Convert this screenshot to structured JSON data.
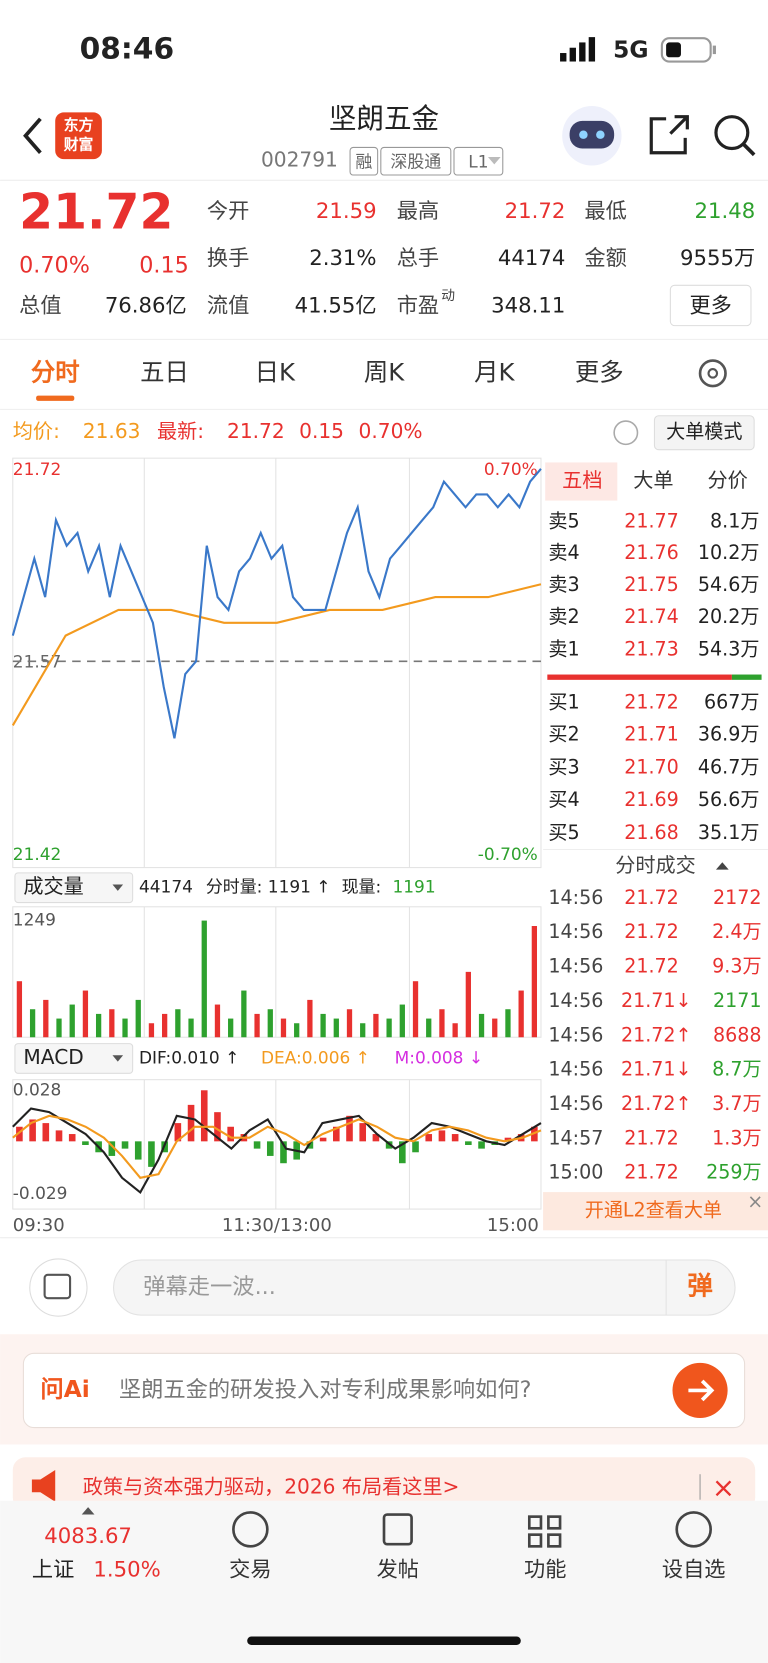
{
  "status": {
    "time": "08:46",
    "network": "5G"
  },
  "header": {
    "logo": [
      "东方",
      "财富"
    ],
    "title": "坚朗五金",
    "code": "002791",
    "tags": [
      "融",
      "深股通",
      "L1"
    ]
  },
  "quote": {
    "price": "21.72",
    "pct": "0.70%",
    "change": "0.15",
    "stats": [
      {
        "label": "今开",
        "value": "21.59",
        "color": "#e8312f"
      },
      {
        "label": "最高",
        "value": "21.72",
        "color": "#e8312f"
      },
      {
        "label": "最低",
        "value": "21.48",
        "color": "#2ea12e"
      },
      {
        "label": "换手",
        "value": "2.31%",
        "color": "#222222"
      },
      {
        "label": "总手",
        "value": "44174",
        "color": "#222222"
      },
      {
        "label": "金额",
        "value": "9555万",
        "color": "#222222"
      },
      {
        "label": "总值",
        "value": "76.86亿",
        "color": "#222222"
      },
      {
        "label": "流值",
        "value": "41.55亿",
        "color": "#222222"
      },
      {
        "label": "市盈",
        "sup": "动",
        "value": "348.11",
        "color": "#222222"
      }
    ],
    "more": "更多"
  },
  "tabs": [
    "分时",
    "五日",
    "日K",
    "周K",
    "月K",
    "更多"
  ],
  "info": {
    "avg_label": "均价:",
    "avg": "21.63",
    "last_label": "最新:",
    "last": "21.72",
    "change": "0.15",
    "pct": "0.70%",
    "mode": "大单模式"
  },
  "price_chart": {
    "type": "line",
    "ylim": [
      21.42,
      21.72
    ],
    "yticks": [
      21.72,
      21.57,
      21.42
    ],
    "y2lim": [
      -0.7,
      0.7
    ],
    "y2ticks": [
      {
        "value": 0.7,
        "label": "0.70%"
      },
      {
        "value": -0.7,
        "label": "-0.70%"
      }
    ],
    "prev_close": 21.57,
    "series": [
      {
        "name": "最新",
        "color": "#3a78c9",
        "values": [
          21.59,
          21.62,
          21.65,
          21.62,
          21.68,
          21.66,
          21.67,
          21.64,
          21.66,
          21.62,
          21.66,
          21.64,
          21.62,
          21.6,
          21.55,
          21.51,
          21.56,
          21.57,
          21.66,
          21.62,
          21.61,
          21.64,
          21.65,
          21.67,
          21.65,
          21.66,
          21.62,
          21.61,
          21.61,
          21.61,
          21.64,
          21.67,
          21.69,
          21.64,
          21.62,
          21.65,
          21.66,
          21.67,
          21.68,
          21.69,
          21.71,
          21.7,
          21.69,
          21.7,
          21.7,
          21.69,
          21.7,
          21.69,
          21.71,
          21.72
        ]
      },
      {
        "name": "均价",
        "color": "#f39a1e",
        "values": [
          21.52,
          21.59,
          21.61,
          21.61,
          21.6,
          21.6,
          21.61,
          21.61,
          21.62,
          21.62,
          21.63
        ]
      }
    ],
    "xticks": [
      "09:30",
      "11:30/13:00",
      "15:00"
    ]
  },
  "volume_chart": {
    "type": "bar",
    "label": "成交量",
    "total": "44174",
    "period": "分时量: 1191 ↑",
    "now_label": "现量:",
    "now": "1191",
    "ylim": [
      0,
      1249
    ],
    "yticks": [
      1249
    ],
    "values": [
      600,
      300,
      400,
      200,
      350,
      500,
      250,
      300,
      200,
      400,
      150,
      250,
      300,
      200,
      1249,
      350,
      200,
      500,
      250,
      300,
      200,
      150,
      400,
      250,
      200,
      300,
      150,
      250,
      200,
      350,
      600,
      200,
      300,
      150,
      700,
      250,
      200,
      300,
      500,
      1191
    ],
    "colors": [
      "#e8312f",
      "#2ea12e",
      "#e8312f",
      "#2ea12e",
      "#2ea12e",
      "#e8312f",
      "#2ea12e",
      "#e8312f",
      "#2ea12e",
      "#2ea12e",
      "#e8312f",
      "#e8312f",
      "#2ea12e",
      "#2ea12e",
      "#2ea12e",
      "#e8312f",
      "#2ea12e",
      "#2ea12e",
      "#e8312f",
      "#2ea12e",
      "#e8312f",
      "#2ea12e",
      "#e8312f",
      "#2ea12e",
      "#2ea12e",
      "#e8312f",
      "#2ea12e",
      "#e8312f",
      "#2ea12e",
      "#2ea12e",
      "#e8312f",
      "#2ea12e",
      "#e8312f",
      "#e8312f",
      "#e8312f",
      "#2ea12e",
      "#e8312f",
      "#2ea12e",
      "#e8312f",
      "#e8312f"
    ]
  },
  "macd_chart": {
    "type": "bar",
    "label": "MACD",
    "dif": "DIF:0.010 ↑",
    "dea": "DEA:0.006 ↑",
    "m": "M:0.008 ↓",
    "ylim": [
      -0.029,
      0.028
    ],
    "yticks": [
      0.028,
      -0.029
    ],
    "values": [
      0.008,
      0.012,
      0.01,
      0.006,
      0.004,
      -0.002,
      -0.006,
      -0.008,
      -0.004,
      -0.01,
      -0.014,
      -0.006,
      0.01,
      0.02,
      0.028,
      0.016,
      0.008,
      0.004,
      -0.004,
      -0.008,
      -0.012,
      -0.01,
      -0.004,
      0.002,
      0.008,
      0.014,
      0.01,
      0.004,
      -0.004,
      -0.012,
      -0.006,
      0.004,
      0.006,
      0.004,
      -0.002,
      -0.004,
      -0.002,
      0.002,
      0.004,
      0.008
    ],
    "series": [
      {
        "name": "DIF",
        "color": "#222222",
        "values": [
          0.008,
          0.018,
          0.016,
          0.01,
          0.004,
          -0.006,
          -0.02,
          -0.028,
          -0.01,
          0.014,
          0.012,
          0.004,
          -0.004,
          0.006,
          0.012,
          -0.004,
          -0.006,
          0.01,
          0.012,
          0.014,
          0.004,
          -0.004,
          0.002,
          0.01,
          0.008,
          0.004,
          0.0,
          -0.002,
          0.004,
          0.01
        ]
      },
      {
        "name": "DEA",
        "color": "#f39a1e",
        "values": [
          0.002,
          0.01,
          0.014,
          0.012,
          0.008,
          0.002,
          -0.008,
          -0.02,
          -0.018,
          0.0,
          0.008,
          0.008,
          0.002,
          0.002,
          0.008,
          0.004,
          -0.002,
          0.004,
          0.008,
          0.012,
          0.008,
          0.002,
          0.0,
          0.006,
          0.008,
          0.006,
          0.002,
          0.0,
          0.002,
          0.006
        ]
      }
    ]
  },
  "book": {
    "tabs": [
      "五档",
      "大单",
      "分价"
    ],
    "asks": [
      [
        "卖5",
        "21.77",
        "8.1万"
      ],
      [
        "卖4",
        "21.76",
        "10.2万"
      ],
      [
        "卖3",
        "21.75",
        "54.6万"
      ],
      [
        "卖2",
        "21.74",
        "20.2万"
      ],
      [
        "卖1",
        "21.73",
        "54.3万"
      ]
    ],
    "bids": [
      [
        "买1",
        "21.72",
        "667万"
      ],
      [
        "买2",
        "21.71",
        "36.9万"
      ],
      [
        "买3",
        "21.70",
        "46.7万"
      ],
      [
        "买4",
        "21.69",
        "56.6万"
      ],
      [
        "买5",
        "21.68",
        "35.1万"
      ]
    ]
  },
  "trades": {
    "title": "分时成交",
    "rows": [
      {
        "time": "14:56",
        "price": "21.72",
        "vol": "2172",
        "price_color": "#e8312f",
        "vol_color": "#e8312f"
      },
      {
        "time": "14:56",
        "price": "21.72",
        "vol": "2.4万",
        "price_color": "#e8312f",
        "vol_color": "#e8312f"
      },
      {
        "time": "14:56",
        "price": "21.72",
        "vol": "9.3万",
        "price_color": "#e8312f",
        "vol_color": "#e8312f"
      },
      {
        "time": "14:56",
        "price": "21.71↓",
        "vol": "2171",
        "price_color": "#e8312f",
        "vol_color": "#2ea12e"
      },
      {
        "time": "14:56",
        "price": "21.72↑",
        "vol": "8688",
        "price_color": "#e8312f",
        "vol_color": "#e8312f"
      },
      {
        "time": "14:56",
        "price": "21.71↓",
        "vol": "8.7万",
        "price_color": "#e8312f",
        "vol_color": "#2ea12e"
      },
      {
        "time": "14:56",
        "price": "21.72↑",
        "vol": "3.7万",
        "price_color": "#e8312f",
        "vol_color": "#e8312f"
      },
      {
        "time": "14:57",
        "price": "21.72",
        "vol": "1.3万",
        "price_color": "#e8312f",
        "vol_color": "#e8312f"
      },
      {
        "time": "15:00",
        "price": "21.72",
        "vol": "259万",
        "price_color": "#e8312f",
        "vol_color": "#2ea12e"
      }
    ],
    "l2": "开通L2查看大单"
  },
  "comment": {
    "placeholder": "弹幕走一波...",
    "button": "弹"
  },
  "ai": {
    "brand": "问Ai",
    "question": "坚朗五金的研发投入对专利成果影响如何?"
  },
  "promo": "政策与资本强力驱动，2026 布局看这里>",
  "nav": {
    "index_value": "4083.67",
    "index_name": "上证",
    "index_pct": "1.50%",
    "items": [
      "交易",
      "发帖",
      "功能",
      "设自选"
    ]
  }
}
